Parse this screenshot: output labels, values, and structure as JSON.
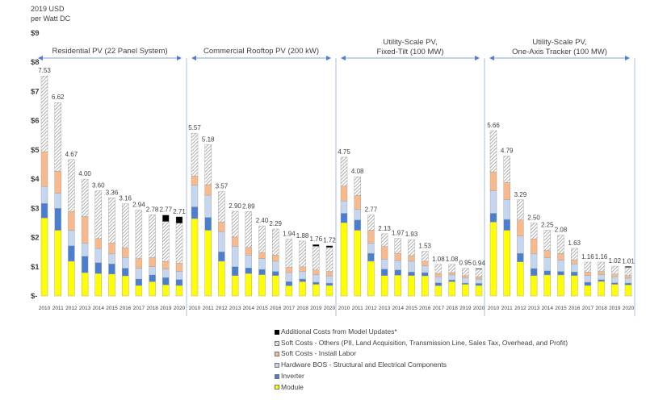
{
  "chart_data": {
    "type": "bar",
    "stacked": true,
    "title": "",
    "ylabel": "2019 USD per Watt DC",
    "ylabel_lines": [
      "2019 USD",
      "per Watt DC"
    ],
    "xlabel": "",
    "ylim": [
      0,
      9
    ],
    "yticks": [
      0,
      1,
      2,
      3,
      4,
      5,
      6,
      7,
      8,
      9
    ],
    "ytick_labels": [
      "$-",
      "$1",
      "$2",
      "$3",
      "$4",
      "$5",
      "$6",
      "$7",
      "$8",
      "$9"
    ],
    "grid": false,
    "legend_position": "bottom-center",
    "categories": [
      "2010",
      "2011",
      "2012",
      "2013",
      "2014",
      "2015",
      "2016",
      "2017",
      "2018",
      "2019",
      "2020"
    ],
    "series_order": [
      "Module",
      "Inverter",
      "Hardware BOS - Structural and Electrical Components",
      "Soft Costs - Install Labor",
      "Soft Costs - Others (PII, Land Acquisition, Transmission Line, Sales Tax, Overhead, and Profit)",
      "Additional Costs from Model Updates*"
    ],
    "series_colors": {
      "Module": "#ffff00",
      "Inverter": "#4a7fd0",
      "Hardware BOS - Structural and Electrical Components": "#c5d7f0",
      "Soft Costs - Install Labor": "#f8b98c",
      "Soft Costs - Others (PII, Land Acquisition, Transmission Line, Sales Tax, Overhead, and Profit)": "hatched-gray",
      "Additional Costs from Model Updates*": "#000000"
    },
    "legend": [
      {
        "label": "Additional Costs from Model Updates*",
        "swatch": "black"
      },
      {
        "label": "Soft Costs - Others (PII, Land Acquisition, Transmission Line, Sales Tax, Overhead, and Profit)",
        "swatch": "hatched"
      },
      {
        "label": "Soft Costs - Install Labor",
        "swatch": "orange"
      },
      {
        "label": "Hardware BOS - Structural and Electrical Components",
        "swatch": "lightblue"
      },
      {
        "label": "Inverter",
        "swatch": "blue"
      },
      {
        "label": "Module",
        "swatch": "yellow"
      }
    ],
    "groups": [
      {
        "name": "Residential PV (22 Panel System)",
        "title_lines": [
          "Residential PV (22 Panel System)"
        ],
        "totals": [
          7.53,
          6.62,
          4.67,
          4.0,
          3.6,
          3.36,
          3.16,
          2.94,
          2.78,
          2.77,
          2.71
        ],
        "total_labels": [
          "7.53",
          "6.62",
          "4.67",
          "4.00",
          "3.60",
          "3.36",
          "3.16",
          "2.94",
          "2.78",
          "2.77",
          "2.71"
        ],
        "series": [
          {
            "name": "Module",
            "values": [
              2.67,
              2.25,
              1.19,
              0.8,
              0.77,
              0.75,
              0.69,
              0.36,
              0.49,
              0.38,
              0.36
            ]
          },
          {
            "name": "Inverter",
            "values": [
              0.5,
              0.75,
              0.53,
              0.56,
              0.37,
              0.35,
              0.26,
              0.22,
              0.23,
              0.25,
              0.2
            ]
          },
          {
            "name": "Hardware BOS - Structural and Electrical Components",
            "values": [
              0.58,
              0.52,
              0.53,
              0.44,
              0.49,
              0.34,
              0.37,
              0.37,
              0.28,
              0.29,
              0.28
            ]
          },
          {
            "name": "Soft Costs - Install Labor",
            "values": [
              1.19,
              0.75,
              0.64,
              0.92,
              0.34,
              0.37,
              0.33,
              0.33,
              0.31,
              0.26,
              0.28
            ]
          },
          {
            "name": "Soft Costs - Others (PII, Land Acquisition, Transmission Line, Sales Tax, Overhead, and Profit)",
            "values": [
              2.59,
              2.35,
              1.78,
              1.28,
              1.63,
              1.55,
              1.51,
              1.66,
              1.47,
              1.37,
              1.37
            ]
          },
          {
            "name": "Additional Costs from Model Updates*",
            "values": [
              0,
              0,
              0,
              0,
              0,
              0,
              0,
              0,
              0,
              0.22,
              0.22
            ]
          }
        ]
      },
      {
        "name": "Commercial Rooftop PV (200 kW)",
        "title_lines": [
          "Commercial Rooftop PV (200 kW)"
        ],
        "totals": [
          5.57,
          5.18,
          3.57,
          2.9,
          2.89,
          2.4,
          2.29,
          1.94,
          1.88,
          1.76,
          1.72
        ],
        "total_labels": [
          "5.57",
          "5.18",
          "3.57",
          "2.90",
          "2.89",
          "2.40",
          "2.29",
          "1.94",
          "1.88",
          "1.76",
          "1.72"
        ],
        "series": [
          {
            "name": "Module",
            "values": [
              2.65,
              2.25,
              1.19,
              0.7,
              0.77,
              0.73,
              0.7,
              0.35,
              0.49,
              0.4,
              0.36
            ]
          },
          {
            "name": "Inverter",
            "values": [
              0.4,
              0.44,
              0.32,
              0.3,
              0.19,
              0.18,
              0.14,
              0.14,
              0.09,
              0.07,
              0.08
            ]
          },
          {
            "name": "Hardware BOS - Structural and Electrical Components",
            "values": [
              0.74,
              0.76,
              0.69,
              0.7,
              0.44,
              0.37,
              0.35,
              0.31,
              0.26,
              0.26,
              0.25
            ]
          },
          {
            "name": "Soft Costs - Install Labor",
            "values": [
              0.32,
              0.36,
              0.33,
              0.32,
              0.26,
              0.21,
              0.21,
              0.18,
              0.16,
              0.16,
              0.15
            ]
          },
          {
            "name": "Soft Costs - Others (PII, Land Acquisition, Transmission Line, Sales Tax, Overhead, and Profit)",
            "values": [
              1.46,
              1.37,
              1.04,
              0.88,
              1.23,
              0.91,
              0.89,
              0.96,
              0.88,
              0.81,
              0.82
            ]
          },
          {
            "name": "Additional Costs from Model Updates*",
            "values": [
              0,
              0,
              0,
              0,
              0,
              0,
              0,
              0,
              0,
              0.06,
              0.06
            ]
          }
        ]
      },
      {
        "name": "Utility-Scale PV, Fixed-Tilt (100 MW)",
        "title_lines": [
          "Utility-Scale PV,",
          "Fixed-Tilt (100 MW)"
        ],
        "totals": [
          4.75,
          4.08,
          2.77,
          2.13,
          1.97,
          1.93,
          1.53,
          1.08,
          1.08,
          0.95,
          0.94
        ],
        "total_labels": [
          "4.75",
          "4.08",
          "2.77",
          "2.13",
          "1.97",
          "1.93",
          "1.53",
          "1.08",
          "1.08",
          "0.95",
          "0.94"
        ],
        "series": [
          {
            "name": "Module",
            "values": [
              2.51,
              2.25,
              1.19,
              0.7,
              0.71,
              0.7,
              0.69,
              0.35,
              0.49,
              0.4,
              0.36
            ]
          },
          {
            "name": "Inverter",
            "values": [
              0.32,
              0.35,
              0.27,
              0.22,
              0.18,
              0.12,
              0.11,
              0.1,
              0.06,
              0.04,
              0.07
            ]
          },
          {
            "name": "Hardware BOS - Structural and Electrical Components",
            "values": [
              0.42,
              0.37,
              0.35,
              0.34,
              0.32,
              0.37,
              0.23,
              0.21,
              0.17,
              0.19,
              0.15
            ]
          },
          {
            "name": "Soft Costs - Install Labor",
            "values": [
              0.51,
              0.47,
              0.44,
              0.43,
              0.25,
              0.19,
              0.16,
              0.11,
              0.08,
              0.07,
              0.08
            ]
          },
          {
            "name": "Soft Costs - Others (PII, Land Acquisition, Transmission Line, Sales Tax, Overhead, and Profit)",
            "values": [
              0.99,
              0.64,
              0.52,
              0.44,
              0.51,
              0.55,
              0.34,
              0.31,
              0.28,
              0.25,
              0.26
            ]
          },
          {
            "name": "Additional Costs from Model Updates*",
            "values": [
              0,
              0,
              0,
              0,
              0,
              0,
              0,
              0,
              0,
              0,
              0.02
            ]
          }
        ]
      },
      {
        "name": "Utility-Scale PV, One-Axis Tracker (100 MW)",
        "title_lines": [
          "Utility-Scale PV,",
          "One-Axis Tracker (100 MW)"
        ],
        "totals": [
          5.66,
          4.79,
          3.29,
          2.5,
          2.25,
          2.08,
          1.63,
          1.16,
          1.16,
          1.02,
          1.01
        ],
        "total_labels": [
          "5.66",
          "4.79",
          "3.29",
          "2.50",
          "2.25",
          "2.08",
          "1.63",
          "1.16",
          "1.16",
          "1.02",
          "1.01"
        ],
        "series": [
          {
            "name": "Module",
            "values": [
              2.53,
              2.25,
              1.17,
              0.7,
              0.72,
              0.72,
              0.7,
              0.36,
              0.5,
              0.4,
              0.38
            ]
          },
          {
            "name": "Inverter",
            "values": [
              0.3,
              0.37,
              0.29,
              0.24,
              0.14,
              0.12,
              0.12,
              0.11,
              0.06,
              0.05,
              0.06
            ]
          },
          {
            "name": "Hardware BOS - Structural and Electrical Components",
            "values": [
              0.77,
              0.68,
              0.59,
              0.5,
              0.45,
              0.39,
              0.28,
              0.23,
              0.17,
              0.21,
              0.17
            ]
          },
          {
            "name": "Soft Costs - Install Labor",
            "values": [
              0.65,
              0.58,
              0.55,
              0.51,
              0.25,
              0.23,
              0.13,
              0.12,
              0.11,
              0.09,
              0.09
            ]
          },
          {
            "name": "Soft Costs - Others (PII, Land Acquisition, Transmission Line, Sales Tax, Overhead, and Profit)",
            "values": [
              1.41,
              0.91,
              0.69,
              0.55,
              0.69,
              0.62,
              0.4,
              0.34,
              0.32,
              0.27,
              0.28
            ]
          },
          {
            "name": "Additional Costs from Model Updates*",
            "values": [
              0,
              0,
              0,
              0,
              0,
              0,
              0,
              0,
              0,
              0,
              0.03
            ]
          }
        ]
      }
    ]
  }
}
